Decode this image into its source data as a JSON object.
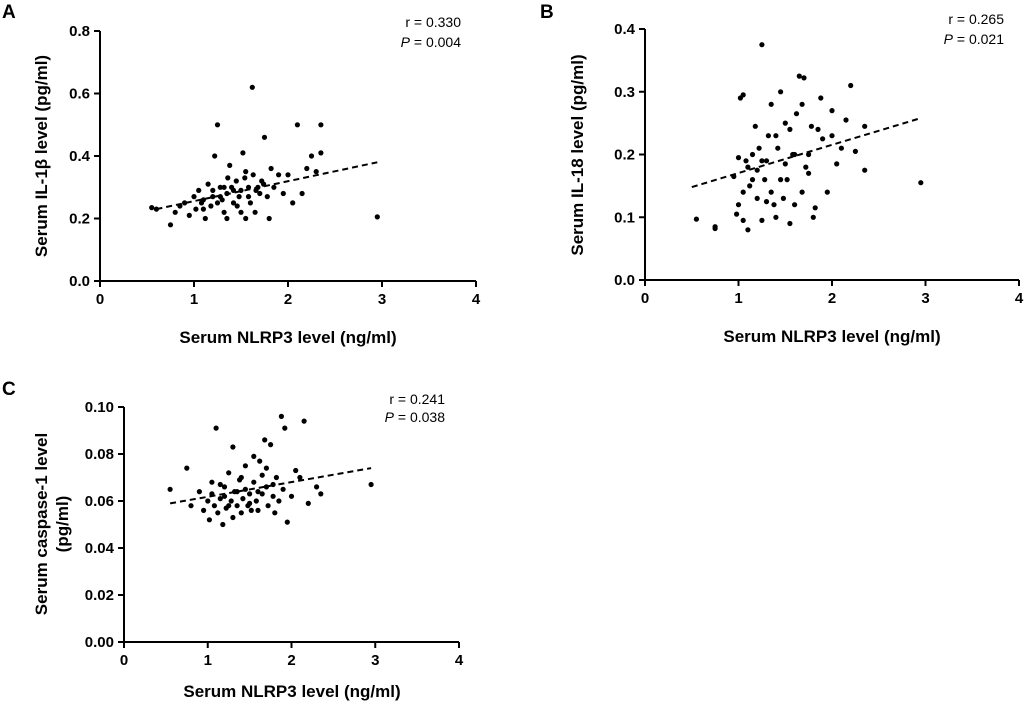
{
  "chart_data": [
    {
      "panel": "A",
      "type": "scatter",
      "xlabel": "Serum NLRP3 level (ng/ml)",
      "ylabel": "Serum IL-1β level (pg/ml)",
      "xlim": [
        0,
        4
      ],
      "ylim": [
        0,
        0.8
      ],
      "xticks": [
        "0",
        "1",
        "2",
        "3",
        "4"
      ],
      "yticks": [
        "0.0",
        "0.2",
        "0.4",
        "0.6",
        "0.8"
      ],
      "r_text": "r = 0.330",
      "p_label": "P",
      "p_value_text": " = 0.004",
      "trendline": {
        "x": [
          0.6,
          2.95
        ],
        "y": [
          0.23,
          0.38
        ]
      },
      "points": [
        [
          0.55,
          0.235
        ],
        [
          0.6,
          0.23
        ],
        [
          0.75,
          0.18
        ],
        [
          0.8,
          0.22
        ],
        [
          0.85,
          0.24
        ],
        [
          0.9,
          0.25
        ],
        [
          0.95,
          0.21
        ],
        [
          1.0,
          0.27
        ],
        [
          1.02,
          0.23
        ],
        [
          1.05,
          0.29
        ],
        [
          1.08,
          0.25
        ],
        [
          1.1,
          0.26
        ],
        [
          1.12,
          0.2
        ],
        [
          1.15,
          0.31
        ],
        [
          1.18,
          0.24
        ],
        [
          1.2,
          0.27
        ],
        [
          1.22,
          0.4
        ],
        [
          1.25,
          0.5
        ],
        [
          1.25,
          0.25
        ],
        [
          1.28,
          0.3
        ],
        [
          1.3,
          0.26
        ],
        [
          1.32,
          0.22
        ],
        [
          1.35,
          0.28
        ],
        [
          1.35,
          0.2
        ],
        [
          1.38,
          0.37
        ],
        [
          1.4,
          0.3
        ],
        [
          1.42,
          0.25
        ],
        [
          1.45,
          0.32
        ],
        [
          1.48,
          0.27
        ],
        [
          1.5,
          0.22
        ],
        [
          1.5,
          0.29
        ],
        [
          1.52,
          0.41
        ],
        [
          1.55,
          0.35
        ],
        [
          1.55,
          0.2
        ],
        [
          1.58,
          0.3
        ],
        [
          1.6,
          0.25
        ],
        [
          1.62,
          0.62
        ],
        [
          1.63,
          0.34
        ],
        [
          1.65,
          0.22
        ],
        [
          1.68,
          0.3
        ],
        [
          1.7,
          0.28
        ],
        [
          1.72,
          0.32
        ],
        [
          1.75,
          0.46
        ],
        [
          1.78,
          0.27
        ],
        [
          1.8,
          0.2
        ],
        [
          1.82,
          0.36
        ],
        [
          1.85,
          0.3
        ],
        [
          1.9,
          0.34
        ],
        [
          1.95,
          0.28
        ],
        [
          2.0,
          0.34
        ],
        [
          2.05,
          0.25
        ],
        [
          2.1,
          0.5
        ],
        [
          2.15,
          0.28
        ],
        [
          2.2,
          0.36
        ],
        [
          2.25,
          0.4
        ],
        [
          2.3,
          0.35
        ],
        [
          2.35,
          0.5
        ],
        [
          2.35,
          0.41
        ],
        [
          2.95,
          0.205
        ],
        [
          1.28,
          0.27
        ],
        [
          1.46,
          0.24
        ],
        [
          1.36,
          0.33
        ],
        [
          1.58,
          0.27
        ],
        [
          1.2,
          0.29
        ],
        [
          1.66,
          0.29
        ],
        [
          1.74,
          0.31
        ],
        [
          1.1,
          0.23
        ],
        [
          1.42,
          0.29
        ],
        [
          1.54,
          0.33
        ],
        [
          1.32,
          0.3
        ]
      ]
    },
    {
      "panel": "B",
      "type": "scatter",
      "xlabel": "Serum NLRP3 level (ng/ml)",
      "ylabel": "Serum IL-18 level (pg/ml)",
      "xlim": [
        0,
        4
      ],
      "ylim": [
        0,
        0.4
      ],
      "xticks": [
        "0",
        "1",
        "2",
        "3",
        "4"
      ],
      "yticks": [
        "0.0",
        "0.1",
        "0.2",
        "0.3",
        "0.4"
      ],
      "r_text": "r = 0.265",
      "p_label": "P",
      "p_value_text": " = 0.021",
      "trendline": {
        "x": [
          0.5,
          2.95
        ],
        "y": [
          0.148,
          0.258
        ]
      },
      "points": [
        [
          0.55,
          0.097
        ],
        [
          0.75,
          0.082
        ],
        [
          0.75,
          0.085
        ],
        [
          0.95,
          0.165
        ],
        [
          0.98,
          0.105
        ],
        [
          1.0,
          0.12
        ],
        [
          1.0,
          0.195
        ],
        [
          1.02,
          0.29
        ],
        [
          1.05,
          0.295
        ],
        [
          1.05,
          0.095
        ],
        [
          1.08,
          0.19
        ],
        [
          1.1,
          0.08
        ],
        [
          1.1,
          0.18
        ],
        [
          1.12,
          0.15
        ],
        [
          1.15,
          0.2
        ],
        [
          1.18,
          0.245
        ],
        [
          1.2,
          0.13
        ],
        [
          1.22,
          0.21
        ],
        [
          1.25,
          0.375
        ],
        [
          1.25,
          0.095
        ],
        [
          1.28,
          0.16
        ],
        [
          1.3,
          0.19
        ],
        [
          1.32,
          0.23
        ],
        [
          1.35,
          0.28
        ],
        [
          1.35,
          0.14
        ],
        [
          1.38,
          0.12
        ],
        [
          1.4,
          0.1
        ],
        [
          1.42,
          0.21
        ],
        [
          1.45,
          0.3
        ],
        [
          1.48,
          0.13
        ],
        [
          1.5,
          0.185
        ],
        [
          1.5,
          0.25
        ],
        [
          1.52,
          0.16
        ],
        [
          1.55,
          0.09
        ],
        [
          1.58,
          0.2
        ],
        [
          1.6,
          0.12
        ],
        [
          1.62,
          0.265
        ],
        [
          1.65,
          0.325
        ],
        [
          1.68,
          0.14
        ],
        [
          1.7,
          0.322
        ],
        [
          1.72,
          0.18
        ],
        [
          1.75,
          0.2
        ],
        [
          1.78,
          0.245
        ],
        [
          1.8,
          0.1
        ],
        [
          1.82,
          0.115
        ],
        [
          1.85,
          0.24
        ],
        [
          1.88,
          0.29
        ],
        [
          1.9,
          0.225
        ],
        [
          1.95,
          0.14
        ],
        [
          2.0,
          0.23
        ],
        [
          2.0,
          0.27
        ],
        [
          2.05,
          0.185
        ],
        [
          2.1,
          0.21
        ],
        [
          2.15,
          0.255
        ],
        [
          2.2,
          0.31
        ],
        [
          2.25,
          0.205
        ],
        [
          2.35,
          0.245
        ],
        [
          2.35,
          0.175
        ],
        [
          2.95,
          0.155
        ],
        [
          1.15,
          0.16
        ],
        [
          1.3,
          0.125
        ],
        [
          1.45,
          0.16
        ],
        [
          1.6,
          0.2
        ],
        [
          1.25,
          0.19
        ],
        [
          1.75,
          0.17
        ],
        [
          1.4,
          0.23
        ],
        [
          1.55,
          0.24
        ],
        [
          1.05,
          0.14
        ],
        [
          1.68,
          0.28
        ],
        [
          1.2,
          0.175
        ]
      ]
    },
    {
      "panel": "C",
      "type": "scatter",
      "xlabel": "Serum NLRP3 level (ng/ml)",
      "ylabel_line1": "Serum caspase-1 level",
      "ylabel_line2": "(pg/ml)",
      "xlim": [
        0,
        4
      ],
      "ylim": [
        0,
        0.1
      ],
      "xticks": [
        "0",
        "1",
        "2",
        "3",
        "4"
      ],
      "yticks": [
        "0.00",
        "0.02",
        "0.04",
        "0.06",
        "0.08",
        "0.10"
      ],
      "r_text": "r = 0.241",
      "p_label": "P",
      "p_value_text": " = 0.038",
      "trendline": {
        "x": [
          0.55,
          2.95
        ],
        "y": [
          0.059,
          0.074
        ]
      },
      "points": [
        [
          0.55,
          0.065
        ],
        [
          0.75,
          0.074
        ],
        [
          0.8,
          0.058
        ],
        [
          0.9,
          0.064
        ],
        [
          0.95,
          0.056
        ],
        [
          1.0,
          0.06
        ],
        [
          1.02,
          0.052
        ],
        [
          1.05,
          0.063
        ],
        [
          1.08,
          0.058
        ],
        [
          1.1,
          0.091
        ],
        [
          1.12,
          0.055
        ],
        [
          1.15,
          0.067
        ],
        [
          1.18,
          0.05
        ],
        [
          1.2,
          0.062
        ],
        [
          1.22,
          0.057
        ],
        [
          1.25,
          0.072
        ],
        [
          1.28,
          0.06
        ],
        [
          1.3,
          0.053
        ],
        [
          1.32,
          0.064
        ],
        [
          1.35,
          0.058
        ],
        [
          1.38,
          0.069
        ],
        [
          1.4,
          0.055
        ],
        [
          1.42,
          0.061
        ],
        [
          1.45,
          0.075
        ],
        [
          1.48,
          0.058
        ],
        [
          1.5,
          0.063
        ],
        [
          1.52,
          0.056
        ],
        [
          1.55,
          0.068
        ],
        [
          1.58,
          0.06
        ],
        [
          1.6,
          0.064
        ],
        [
          1.62,
          0.077
        ],
        [
          1.65,
          0.071
        ],
        [
          1.68,
          0.086
        ],
        [
          1.7,
          0.066
        ],
        [
          1.72,
          0.058
        ],
        [
          1.75,
          0.084
        ],
        [
          1.78,
          0.062
        ],
        [
          1.8,
          0.055
        ],
        [
          1.82,
          0.07
        ],
        [
          1.85,
          0.06
        ],
        [
          1.88,
          0.096
        ],
        [
          1.9,
          0.065
        ],
        [
          1.95,
          0.051
        ],
        [
          2.0,
          0.062
        ],
        [
          2.05,
          0.073
        ],
        [
          2.1,
          0.07
        ],
        [
          2.15,
          0.094
        ],
        [
          2.2,
          0.059
        ],
        [
          2.3,
          0.066
        ],
        [
          2.35,
          0.063
        ],
        [
          2.95,
          0.067
        ],
        [
          1.3,
          0.083
        ],
        [
          1.55,
          0.079
        ],
        [
          1.2,
          0.066
        ],
        [
          1.6,
          0.056
        ],
        [
          1.4,
          0.07
        ],
        [
          1.15,
          0.061
        ],
        [
          1.5,
          0.059
        ],
        [
          1.7,
          0.074
        ],
        [
          1.25,
          0.058
        ],
        [
          1.35,
          0.064
        ],
        [
          1.45,
          0.065
        ],
        [
          1.65,
          0.063
        ],
        [
          1.05,
          0.068
        ],
        [
          1.78,
          0.067
        ],
        [
          1.92,
          0.091
        ]
      ]
    }
  ]
}
